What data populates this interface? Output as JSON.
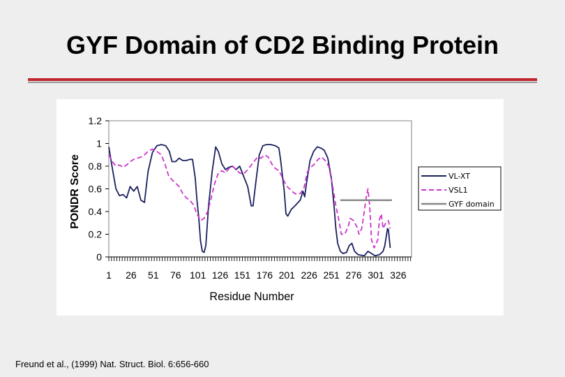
{
  "slide": {
    "title": "GYF Domain of CD2 Binding Protein",
    "citation": "Freund et al., (1999) Nat. Struct. Biol. 6:656-660",
    "accent_color": "#c0262d"
  },
  "chart_data": {
    "type": "line",
    "title": "",
    "xlabel": "Residue Number",
    "ylabel": "PONDR Score",
    "xlim": [
      1,
      341
    ],
    "ylim": [
      0,
      1.2
    ],
    "x_ticks": [
      "1",
      "26",
      "51",
      "76",
      "101",
      "126",
      "151",
      "176",
      "201",
      "226",
      "251",
      "276",
      "301",
      "326"
    ],
    "y_ticks": [
      "0",
      "0.2",
      "0.4",
      "0.6",
      "0.8",
      "1",
      "1.2"
    ],
    "grid": false,
    "legend_position": "right",
    "series": [
      {
        "name": "VL-XT",
        "color": "#1a1f5e",
        "dash": "solid",
        "points": [
          [
            1,
            0.97
          ],
          [
            5,
            0.78
          ],
          [
            9,
            0.6
          ],
          [
            13,
            0.54
          ],
          [
            17,
            0.55
          ],
          [
            21,
            0.52
          ],
          [
            25,
            0.62
          ],
          [
            29,
            0.58
          ],
          [
            33,
            0.62
          ],
          [
            37,
            0.5
          ],
          [
            41,
            0.48
          ],
          [
            45,
            0.75
          ],
          [
            50,
            0.92
          ],
          [
            55,
            0.98
          ],
          [
            60,
            0.99
          ],
          [
            65,
            0.98
          ],
          [
            69,
            0.93
          ],
          [
            72,
            0.84
          ],
          [
            76,
            0.84
          ],
          [
            80,
            0.87
          ],
          [
            84,
            0.85
          ],
          [
            88,
            0.85
          ],
          [
            92,
            0.86
          ],
          [
            95,
            0.86
          ],
          [
            98,
            0.7
          ],
          [
            100,
            0.5
          ],
          [
            102,
            0.35
          ],
          [
            104,
            0.14
          ],
          [
            106,
            0.05
          ],
          [
            108,
            0.04
          ],
          [
            110,
            0.1
          ],
          [
            113,
            0.45
          ],
          [
            117,
            0.75
          ],
          [
            121,
            0.97
          ],
          [
            124,
            0.93
          ],
          [
            128,
            0.82
          ],
          [
            132,
            0.77
          ],
          [
            136,
            0.79
          ],
          [
            140,
            0.8
          ],
          [
            144,
            0.77
          ],
          [
            148,
            0.8
          ],
          [
            152,
            0.72
          ],
          [
            157,
            0.62
          ],
          [
            161,
            0.45
          ],
          [
            163,
            0.45
          ],
          [
            166,
            0.65
          ],
          [
            170,
            0.9
          ],
          [
            174,
            0.98
          ],
          [
            178,
            0.99
          ],
          [
            183,
            0.99
          ],
          [
            188,
            0.98
          ],
          [
            192,
            0.96
          ],
          [
            194,
            0.85
          ],
          [
            198,
            0.58
          ],
          [
            200,
            0.38
          ],
          [
            202,
            0.36
          ],
          [
            206,
            0.42
          ],
          [
            210,
            0.45
          ],
          [
            216,
            0.5
          ],
          [
            219,
            0.58
          ],
          [
            221,
            0.53
          ],
          [
            223,
            0.65
          ],
          [
            227,
            0.85
          ],
          [
            231,
            0.93
          ],
          [
            235,
            0.97
          ],
          [
            239,
            0.96
          ],
          [
            243,
            0.94
          ],
          [
            247,
            0.87
          ],
          [
            251,
            0.69
          ],
          [
            254,
            0.45
          ],
          [
            256,
            0.25
          ],
          [
            258,
            0.12
          ],
          [
            261,
            0.05
          ],
          [
            264,
            0.03
          ],
          [
            268,
            0.04
          ],
          [
            271,
            0.1
          ],
          [
            274,
            0.12
          ],
          [
            277,
            0.05
          ],
          [
            281,
            0.02
          ],
          [
            288,
            0.01
          ],
          [
            292,
            0.05
          ],
          [
            296,
            0.03
          ],
          [
            300,
            0.01
          ],
          [
            305,
            0.02
          ],
          [
            309,
            0.05
          ],
          [
            311,
            0.1
          ],
          [
            314,
            0.25
          ],
          [
            315,
            0.24
          ],
          [
            317,
            0.08
          ]
        ]
      },
      {
        "name": "VSL1",
        "color": "#cc33cc",
        "dash": "dashed",
        "points": [
          [
            1,
            0.9
          ],
          [
            5,
            0.84
          ],
          [
            9,
            0.8
          ],
          [
            13,
            0.81
          ],
          [
            17,
            0.79
          ],
          [
            21,
            0.81
          ],
          [
            25,
            0.84
          ],
          [
            29,
            0.86
          ],
          [
            33,
            0.87
          ],
          [
            37,
            0.88
          ],
          [
            41,
            0.9
          ],
          [
            45,
            0.93
          ],
          [
            50,
            0.95
          ],
          [
            55,
            0.93
          ],
          [
            60,
            0.9
          ],
          [
            64,
            0.82
          ],
          [
            68,
            0.72
          ],
          [
            72,
            0.68
          ],
          [
            76,
            0.65
          ],
          [
            80,
            0.62
          ],
          [
            84,
            0.56
          ],
          [
            88,
            0.52
          ],
          [
            92,
            0.5
          ],
          [
            96,
            0.46
          ],
          [
            100,
            0.38
          ],
          [
            104,
            0.32
          ],
          [
            108,
            0.34
          ],
          [
            112,
            0.4
          ],
          [
            116,
            0.52
          ],
          [
            120,
            0.65
          ],
          [
            124,
            0.74
          ],
          [
            128,
            0.76
          ],
          [
            132,
            0.74
          ],
          [
            136,
            0.78
          ],
          [
            140,
            0.8
          ],
          [
            144,
            0.77
          ],
          [
            148,
            0.74
          ],
          [
            152,
            0.73
          ],
          [
            156,
            0.76
          ],
          [
            160,
            0.8
          ],
          [
            164,
            0.84
          ],
          [
            168,
            0.88
          ],
          [
            172,
            0.87
          ],
          [
            176,
            0.9
          ],
          [
            180,
            0.88
          ],
          [
            184,
            0.82
          ],
          [
            188,
            0.78
          ],
          [
            192,
            0.76
          ],
          [
            196,
            0.7
          ],
          [
            200,
            0.63
          ],
          [
            204,
            0.6
          ],
          [
            208,
            0.57
          ],
          [
            212,
            0.55
          ],
          [
            216,
            0.56
          ],
          [
            220,
            0.6
          ],
          [
            224,
            0.75
          ],
          [
            228,
            0.79
          ],
          [
            232,
            0.82
          ],
          [
            236,
            0.86
          ],
          [
            240,
            0.88
          ],
          [
            244,
            0.85
          ],
          [
            248,
            0.8
          ],
          [
            252,
            0.64
          ],
          [
            256,
            0.45
          ],
          [
            260,
            0.3
          ],
          [
            262,
            0.2
          ],
          [
            266,
            0.2
          ],
          [
            270,
            0.27
          ],
          [
            272,
            0.34
          ],
          [
            276,
            0.32
          ],
          [
            280,
            0.26
          ],
          [
            282,
            0.2
          ],
          [
            285,
            0.25
          ],
          [
            287,
            0.35
          ],
          [
            290,
            0.52
          ],
          [
            292,
            0.6
          ],
          [
            294,
            0.45
          ],
          [
            296,
            0.15
          ],
          [
            299,
            0.08
          ],
          [
            303,
            0.15
          ],
          [
            305,
            0.33
          ],
          [
            307,
            0.38
          ],
          [
            309,
            0.25
          ],
          [
            312,
            0.3
          ],
          [
            315,
            0.32
          ],
          [
            317,
            0.25
          ]
        ]
      },
      {
        "name": "GYF domain",
        "color": "#888888",
        "dash": "solid",
        "points": [
          [
            261,
            0.5
          ],
          [
            319,
            0.5
          ]
        ]
      }
    ]
  }
}
